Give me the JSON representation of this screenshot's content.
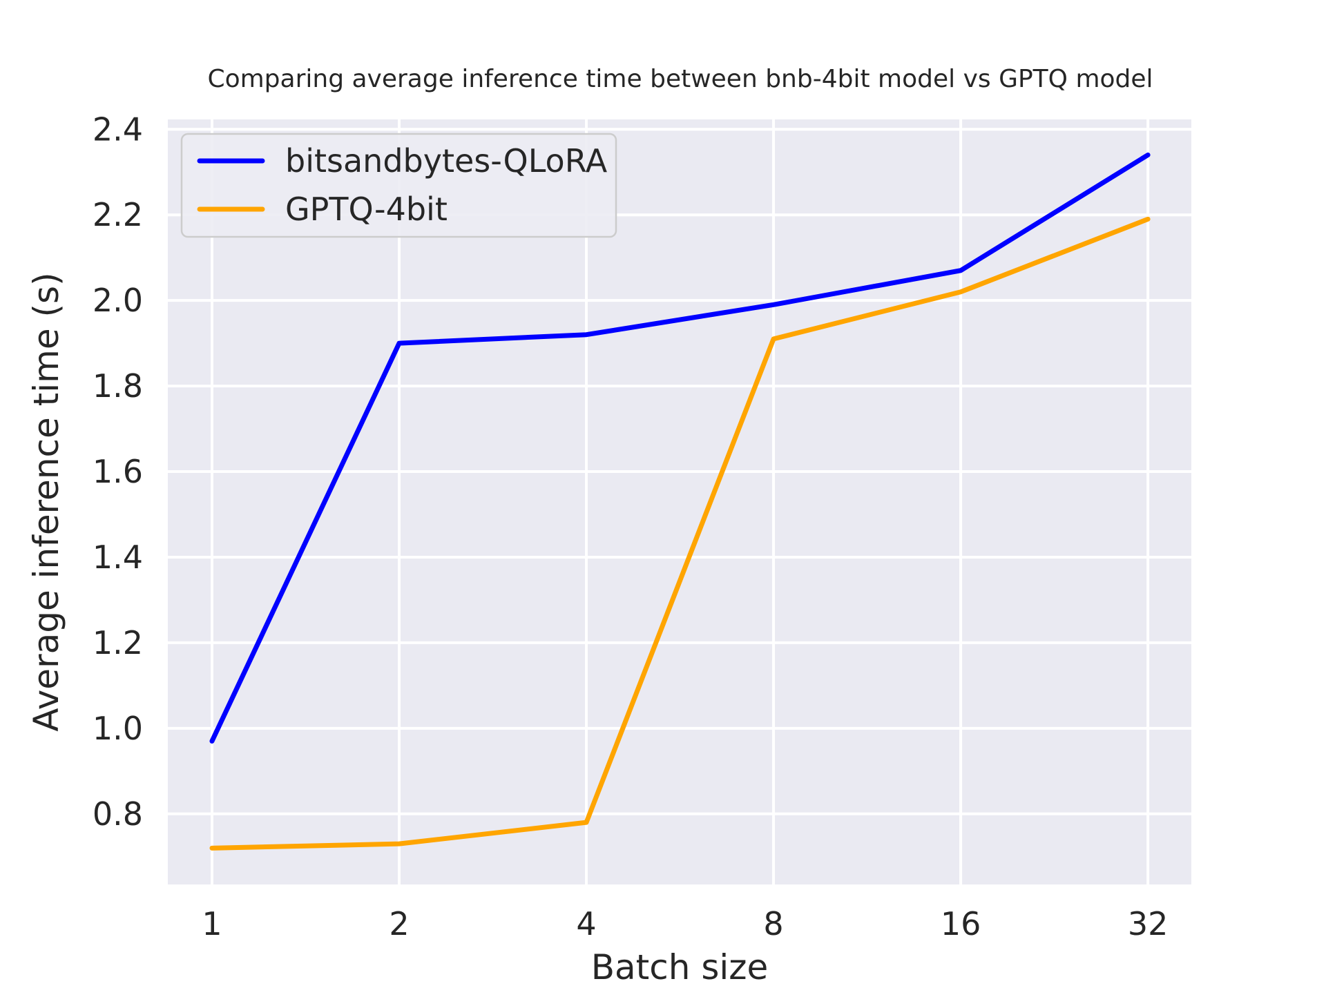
{
  "chart_data": {
    "type": "line",
    "title": "Comparing average inference time between bnb-4bit model vs GPTQ model",
    "xlabel": "Batch size",
    "ylabel": "Average inference time (s)",
    "categories": [
      "1",
      "2",
      "4",
      "8",
      "16",
      "32"
    ],
    "series": [
      {
        "name": "bitsandbytes-QLoRA",
        "color": "#0000ff",
        "values": [
          0.97,
          1.9,
          1.92,
          1.99,
          2.07,
          2.34
        ]
      },
      {
        "name": "GPTQ-4bit",
        "color": "#ffa500",
        "values": [
          0.72,
          0.73,
          0.78,
          1.91,
          2.02,
          2.19
        ]
      }
    ],
    "yticks": [
      "0.8",
      "1.0",
      "1.2",
      "1.4",
      "1.6",
      "1.8",
      "2.0",
      "2.2",
      "2.4"
    ],
    "ylim": [
      0.635,
      2.423
    ],
    "xlim_index": [
      -0.236,
      5.232
    ],
    "grid": true,
    "legend_position": "upper left",
    "colors": {
      "axes_bg": "#EAEAF2",
      "grid": "#ffffff",
      "text": "#262626",
      "legend_bg": "#ECECF3",
      "legend_border": "#cccccc"
    }
  }
}
